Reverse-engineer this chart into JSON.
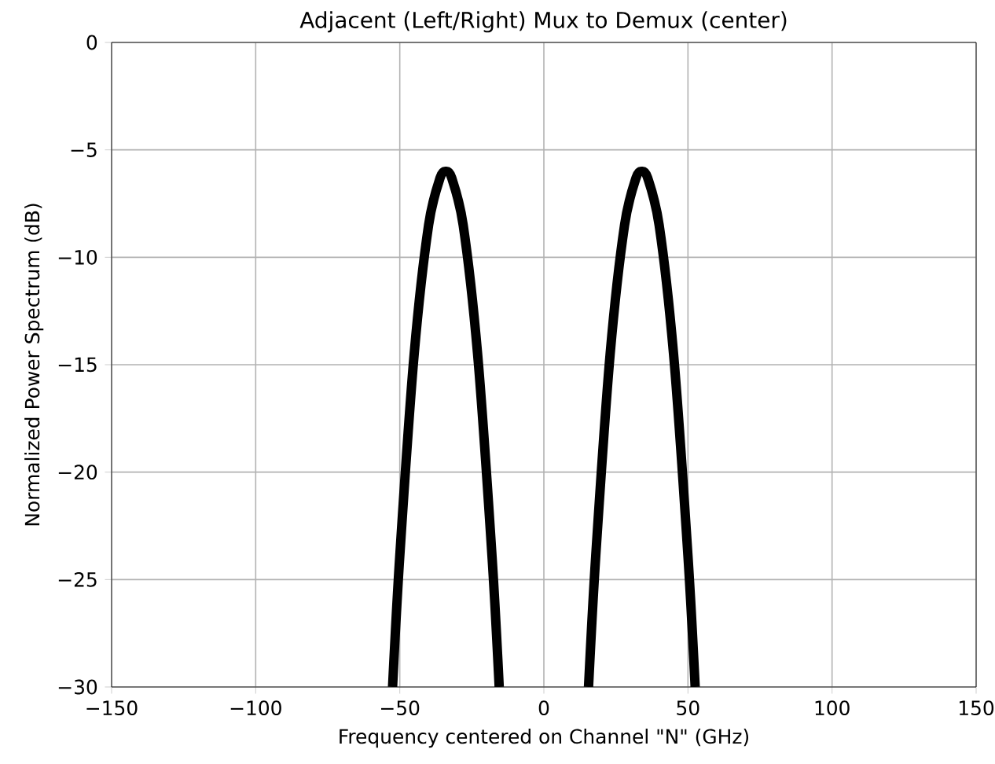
{
  "chart_data": {
    "type": "line",
    "title": "Adjacent (Left/Right) Mux to Demux (center)",
    "xlabel": "Frequency centered on Channel \"N\" (GHz)",
    "ylabel": "Normalized Power Spectrum (dB)",
    "series": [
      {
        "color": "#000000",
        "x": [
          -52.5,
          -50,
          -45,
          -40,
          -36,
          -34,
          -32,
          -28,
          -23,
          -18,
          -15.5
        ],
        "values": [
          -30,
          -23.9,
          -14.5,
          -8.5,
          -6.3,
          -6,
          -6.3,
          -8.5,
          -14.5,
          -23.9,
          -30
        ]
      },
      {
        "color": "#000000",
        "x": [
          15.5,
          18,
          23,
          28,
          32,
          34,
          36,
          40,
          45,
          50,
          52.5
        ],
        "values": [
          -30,
          -23.9,
          -14.5,
          -8.5,
          -6.3,
          -6,
          -6.3,
          -8.5,
          -14.5,
          -23.9,
          -30
        ]
      }
    ],
    "xlim": [
      -150,
      150
    ],
    "ylim": [
      -30,
      0
    ],
    "xticks": [
      {
        "value": -150,
        "label": "−150"
      },
      {
        "value": -100,
        "label": "−100"
      },
      {
        "value": -50,
        "label": "−50"
      },
      0,
      50,
      100,
      150
    ],
    "yticks": [
      {
        "value": -30,
        "label": "−30"
      },
      {
        "value": -25,
        "label": "−25"
      },
      {
        "value": -20,
        "label": "−20"
      },
      {
        "value": -15,
        "label": "−15"
      },
      {
        "value": -10,
        "label": "−10"
      },
      {
        "value": -5,
        "label": "−5"
      },
      0
    ],
    "grid": true,
    "line_style": "solid",
    "marker": "none"
  }
}
